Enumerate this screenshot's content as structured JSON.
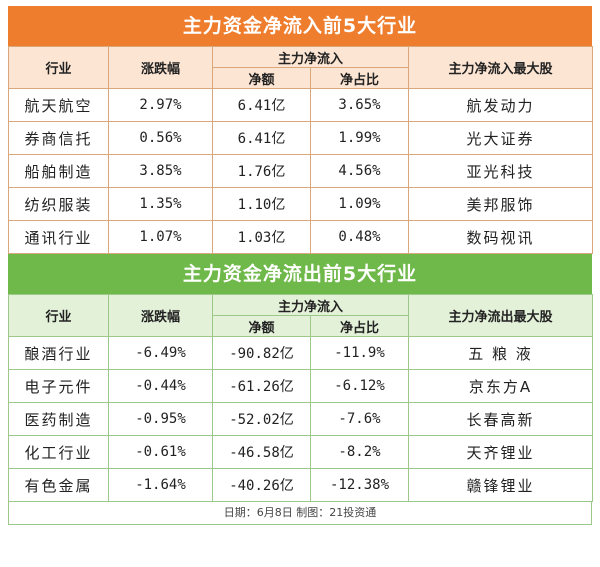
{
  "inflow": {
    "title": "主力资金净流入前5大行业",
    "headers": {
      "industry": "行业",
      "change": "涨跌幅",
      "main_flow": "主力净流入",
      "net": "净额",
      "ratio": "净占比",
      "top_stock": "主力净流入最大股"
    },
    "rows": [
      {
        "industry": "航天航空",
        "change": "2.97%",
        "net": "6.41亿",
        "ratio": "3.65%",
        "stock": "航发动力"
      },
      {
        "industry": "券商信托",
        "change": "0.56%",
        "net": "6.41亿",
        "ratio": "1.99%",
        "stock": "光大证券"
      },
      {
        "industry": "船舶制造",
        "change": "3.85%",
        "net": "1.76亿",
        "ratio": "4.56%",
        "stock": "亚光科技"
      },
      {
        "industry": "纺织服装",
        "change": "1.35%",
        "net": "1.10亿",
        "ratio": "1.09%",
        "stock": "美邦服饰"
      },
      {
        "industry": "通讯行业",
        "change": "1.07%",
        "net": "1.03亿",
        "ratio": "0.48%",
        "stock": "数码视讯"
      }
    ]
  },
  "outflow": {
    "title": "主力资金净流出前5大行业",
    "headers": {
      "industry": "行业",
      "change": "涨跌幅",
      "main_flow": "主力净流入",
      "net": "净额",
      "ratio": "净占比",
      "top_stock": "主力净流出最大股"
    },
    "rows": [
      {
        "industry": "酿酒行业",
        "change": "-6.49%",
        "net": "-90.82亿",
        "ratio": "-11.9%",
        "stock": "五 粮 液"
      },
      {
        "industry": "电子元件",
        "change": "-0.44%",
        "net": "-61.26亿",
        "ratio": "-6.12%",
        "stock": "京东方A"
      },
      {
        "industry": "医药制造",
        "change": "-0.95%",
        "net": "-52.02亿",
        "ratio": "-7.6%",
        "stock": "长春高新"
      },
      {
        "industry": "化工行业",
        "change": "-0.61%",
        "net": "-46.58亿",
        "ratio": "-8.2%",
        "stock": "天齐锂业"
      },
      {
        "industry": "有色金属",
        "change": "-1.64%",
        "net": "-40.26亿",
        "ratio": "-12.38%",
        "stock": "赣锋锂业"
      }
    ]
  },
  "footer": "日期：6月8日  制图：21投资通",
  "colors": {
    "inflow_banner": "#ef7d2e",
    "outflow_banner": "#6fb84a"
  }
}
